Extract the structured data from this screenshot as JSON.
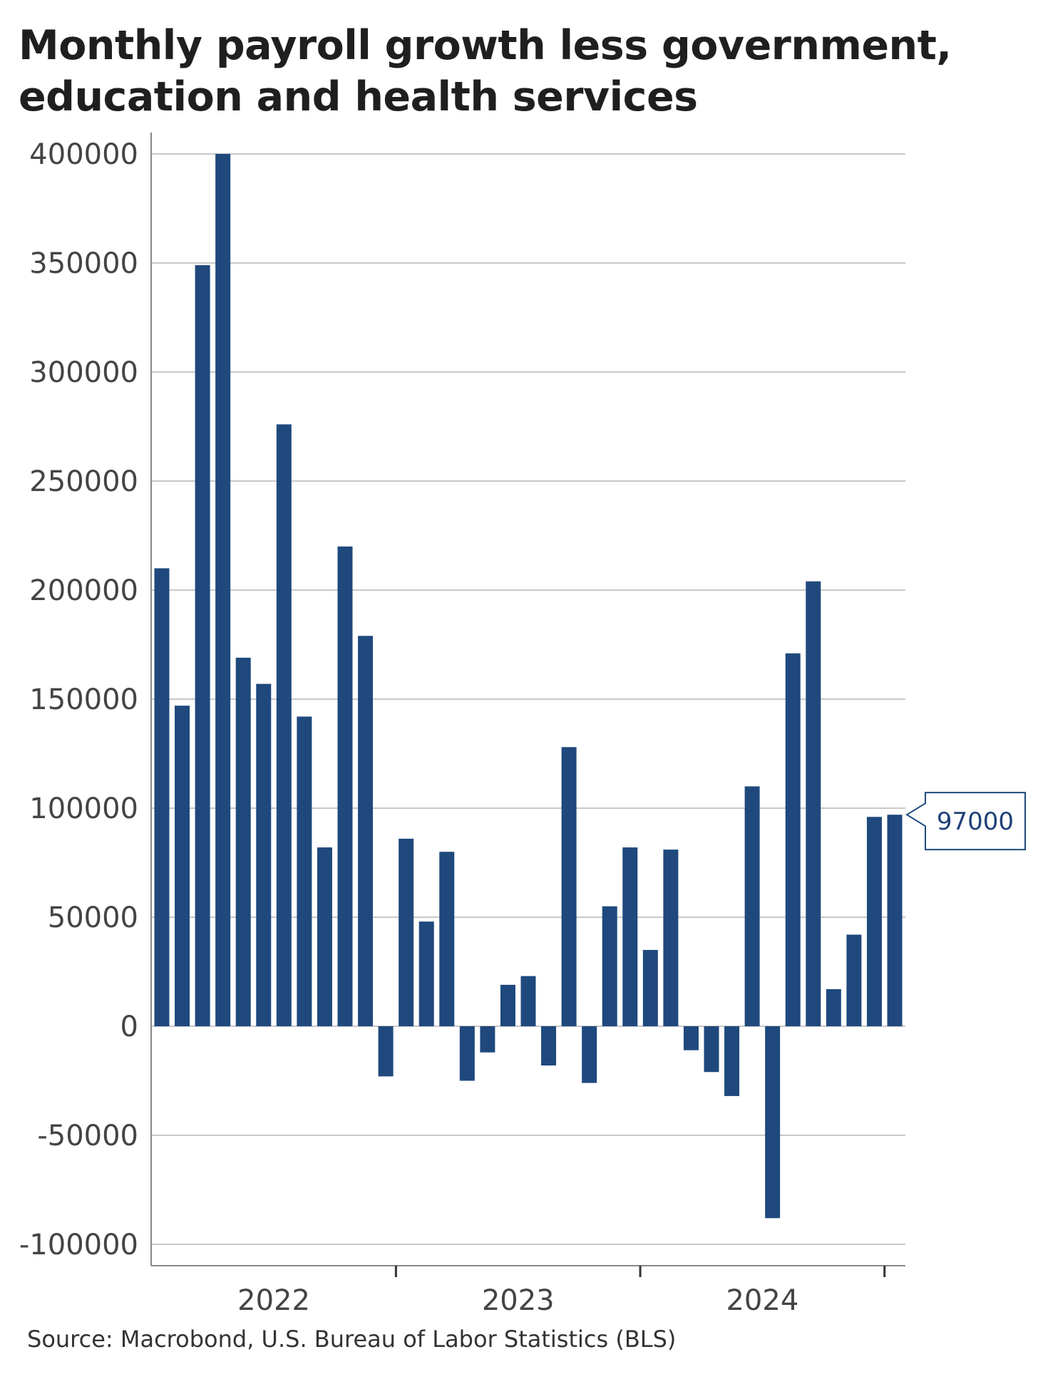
{
  "title_lines": [
    "Monthly payroll growth less government,",
    "education and health services"
  ],
  "source": "Source: Macrobond, U.S. Bureau of Labor Statistics (BLS)",
  "colors": {
    "bar": "#1f497d",
    "grid": "#c8c8c8",
    "axis": "#888888",
    "callout_border": "#1f497d"
  },
  "chart_data": {
    "type": "bar",
    "title": "Monthly payroll growth less government, education and health services",
    "xlabel": "",
    "ylabel": "",
    "ylim": [
      -110000,
      400000
    ],
    "yticks": [
      400000,
      350000,
      300000,
      250000,
      200000,
      150000,
      100000,
      50000,
      0,
      -50000,
      -100000
    ],
    "year_labels": [
      "2022",
      "2023",
      "2024"
    ],
    "grid": true,
    "values": [
      210000,
      147000,
      349000,
      400000,
      169000,
      157000,
      276000,
      142000,
      82000,
      220000,
      179000,
      -23000,
      86000,
      48000,
      80000,
      -25000,
      -12000,
      19000,
      23000,
      -18000,
      128000,
      -26000,
      55000,
      82000,
      35000,
      81000,
      -11000,
      -21000,
      -32000,
      110000,
      -88000,
      171000,
      204000,
      17000,
      42000,
      96000,
      97000
    ],
    "last_value_label": "97000"
  }
}
